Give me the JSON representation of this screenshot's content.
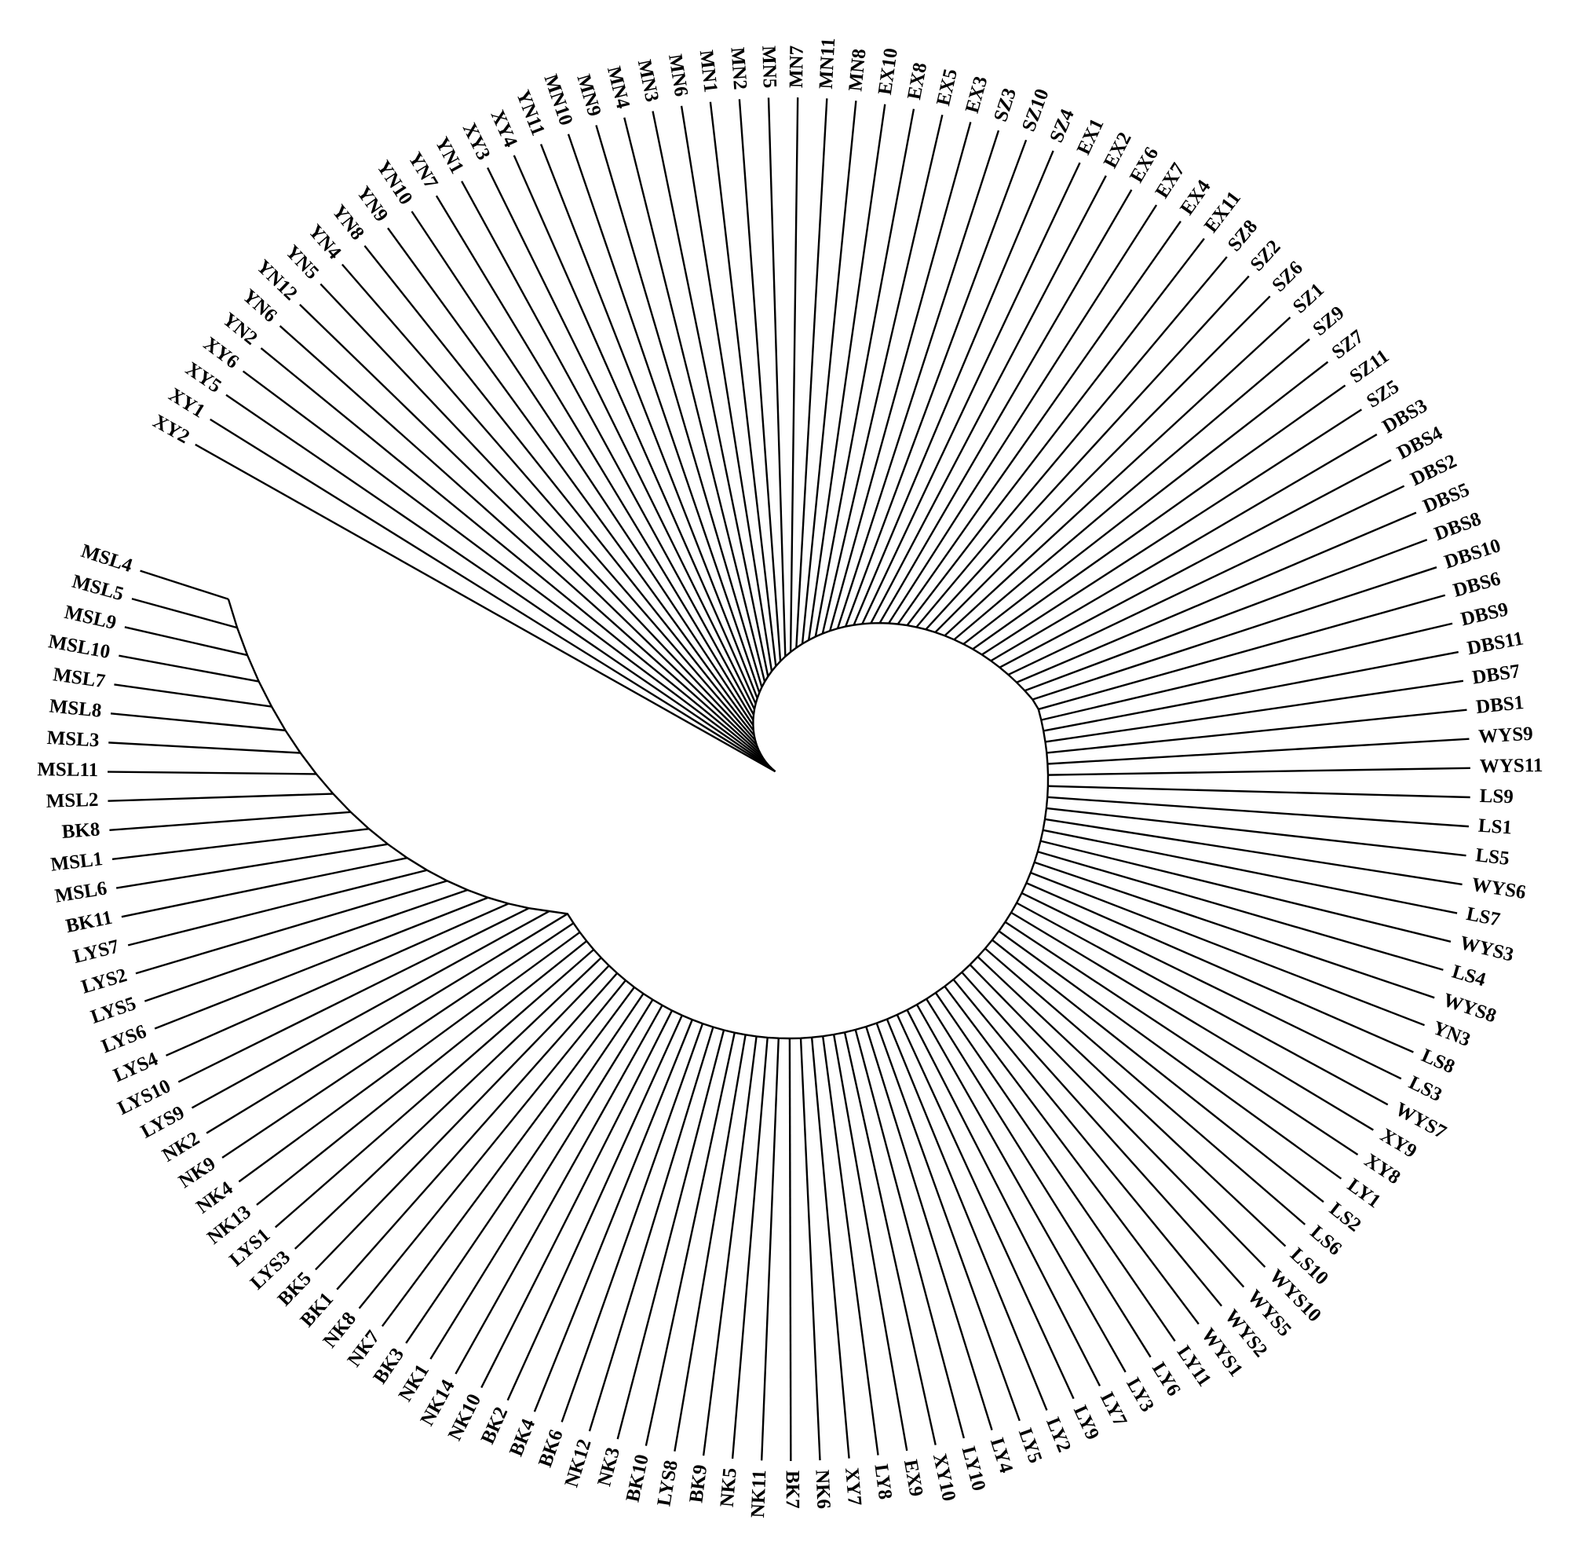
{
  "leaves": [
    "XY2",
    "XY1",
    "XY5",
    "XY6",
    "YN2",
    "YN6",
    "YN12",
    "YN5",
    "YN4",
    "YN8",
    "YN9",
    "YN10",
    "YN7",
    "YN1",
    "XY3",
    "XY4",
    "YN11",
    "MN10",
    "MN9",
    "MN4",
    "MN3",
    "MN6",
    "MN1",
    "MN2",
    "MN5",
    "MN7",
    "MN11",
    "MN8",
    "EX10",
    "EX8",
    "EX5",
    "EX3",
    "SZ3",
    "SZ10",
    "SZ4",
    "EX1",
    "EX2",
    "EX6",
    "EX7",
    "EX4",
    "EX11",
    "SZ8",
    "SZ2",
    "SZ6",
    "SZ1",
    "SZ9",
    "SZ7",
    "SZ11",
    "SZ5",
    "DBS3",
    "DBS4",
    "DBS2",
    "DBS5",
    "DBS8",
    "DBS10",
    "DBS6",
    "DBS9",
    "DBS11",
    "DBS7",
    "DBS1",
    "WYS9",
    "WYS11",
    "LS9",
    "LS1",
    "LS5",
    "WYS6",
    "LS7",
    "WYS3",
    "LS4",
    "WYS8",
    "YN3",
    "LS8",
    "LS3",
    "WYS7",
    "XY9",
    "XY8",
    "LY1",
    "LS2",
    "LS6",
    "LS10",
    "WYS10",
    "WYS5",
    "WYS2",
    "WYS1",
    "LY11",
    "LY6",
    "LY3",
    "LY7",
    "LY9",
    "LY2",
    "LY5",
    "LY4",
    "LY10",
    "XY10",
    "EX9",
    "LY8",
    "XY7",
    "NK6",
    "BK7",
    "NK11",
    "NK5",
    "BK9",
    "LYS8",
    "BK10",
    "NK3",
    "NK12",
    "BK6",
    "BK4",
    "BK2",
    "NK10",
    "NK14",
    "NK1",
    "BK3",
    "NK7",
    "NK8",
    "BK1",
    "BK5",
    "LYS3",
    "LYS1",
    "NK13",
    "NK4",
    "NK9",
    "NK2",
    "LYS9",
    "LYS10",
    "LYS4",
    "LYS6",
    "LYS5",
    "LYS2",
    "LYS7",
    "BK11",
    "MSL6",
    "MSL1",
    "BK8",
    "MSL2",
    "MSL11",
    "MSL3",
    "MSL8",
    "MSL7",
    "MSL10",
    "MSL9",
    "MSL5",
    "MSL4"
  ]
}
